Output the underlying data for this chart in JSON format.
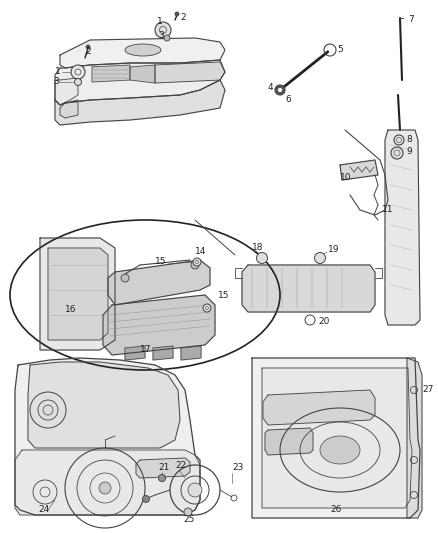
{
  "bg": "#ffffff",
  "lc": "#444444",
  "lc2": "#222222",
  "fig_w": 4.38,
  "fig_h": 5.33,
  "dpi": 100,
  "fs": 6.5
}
